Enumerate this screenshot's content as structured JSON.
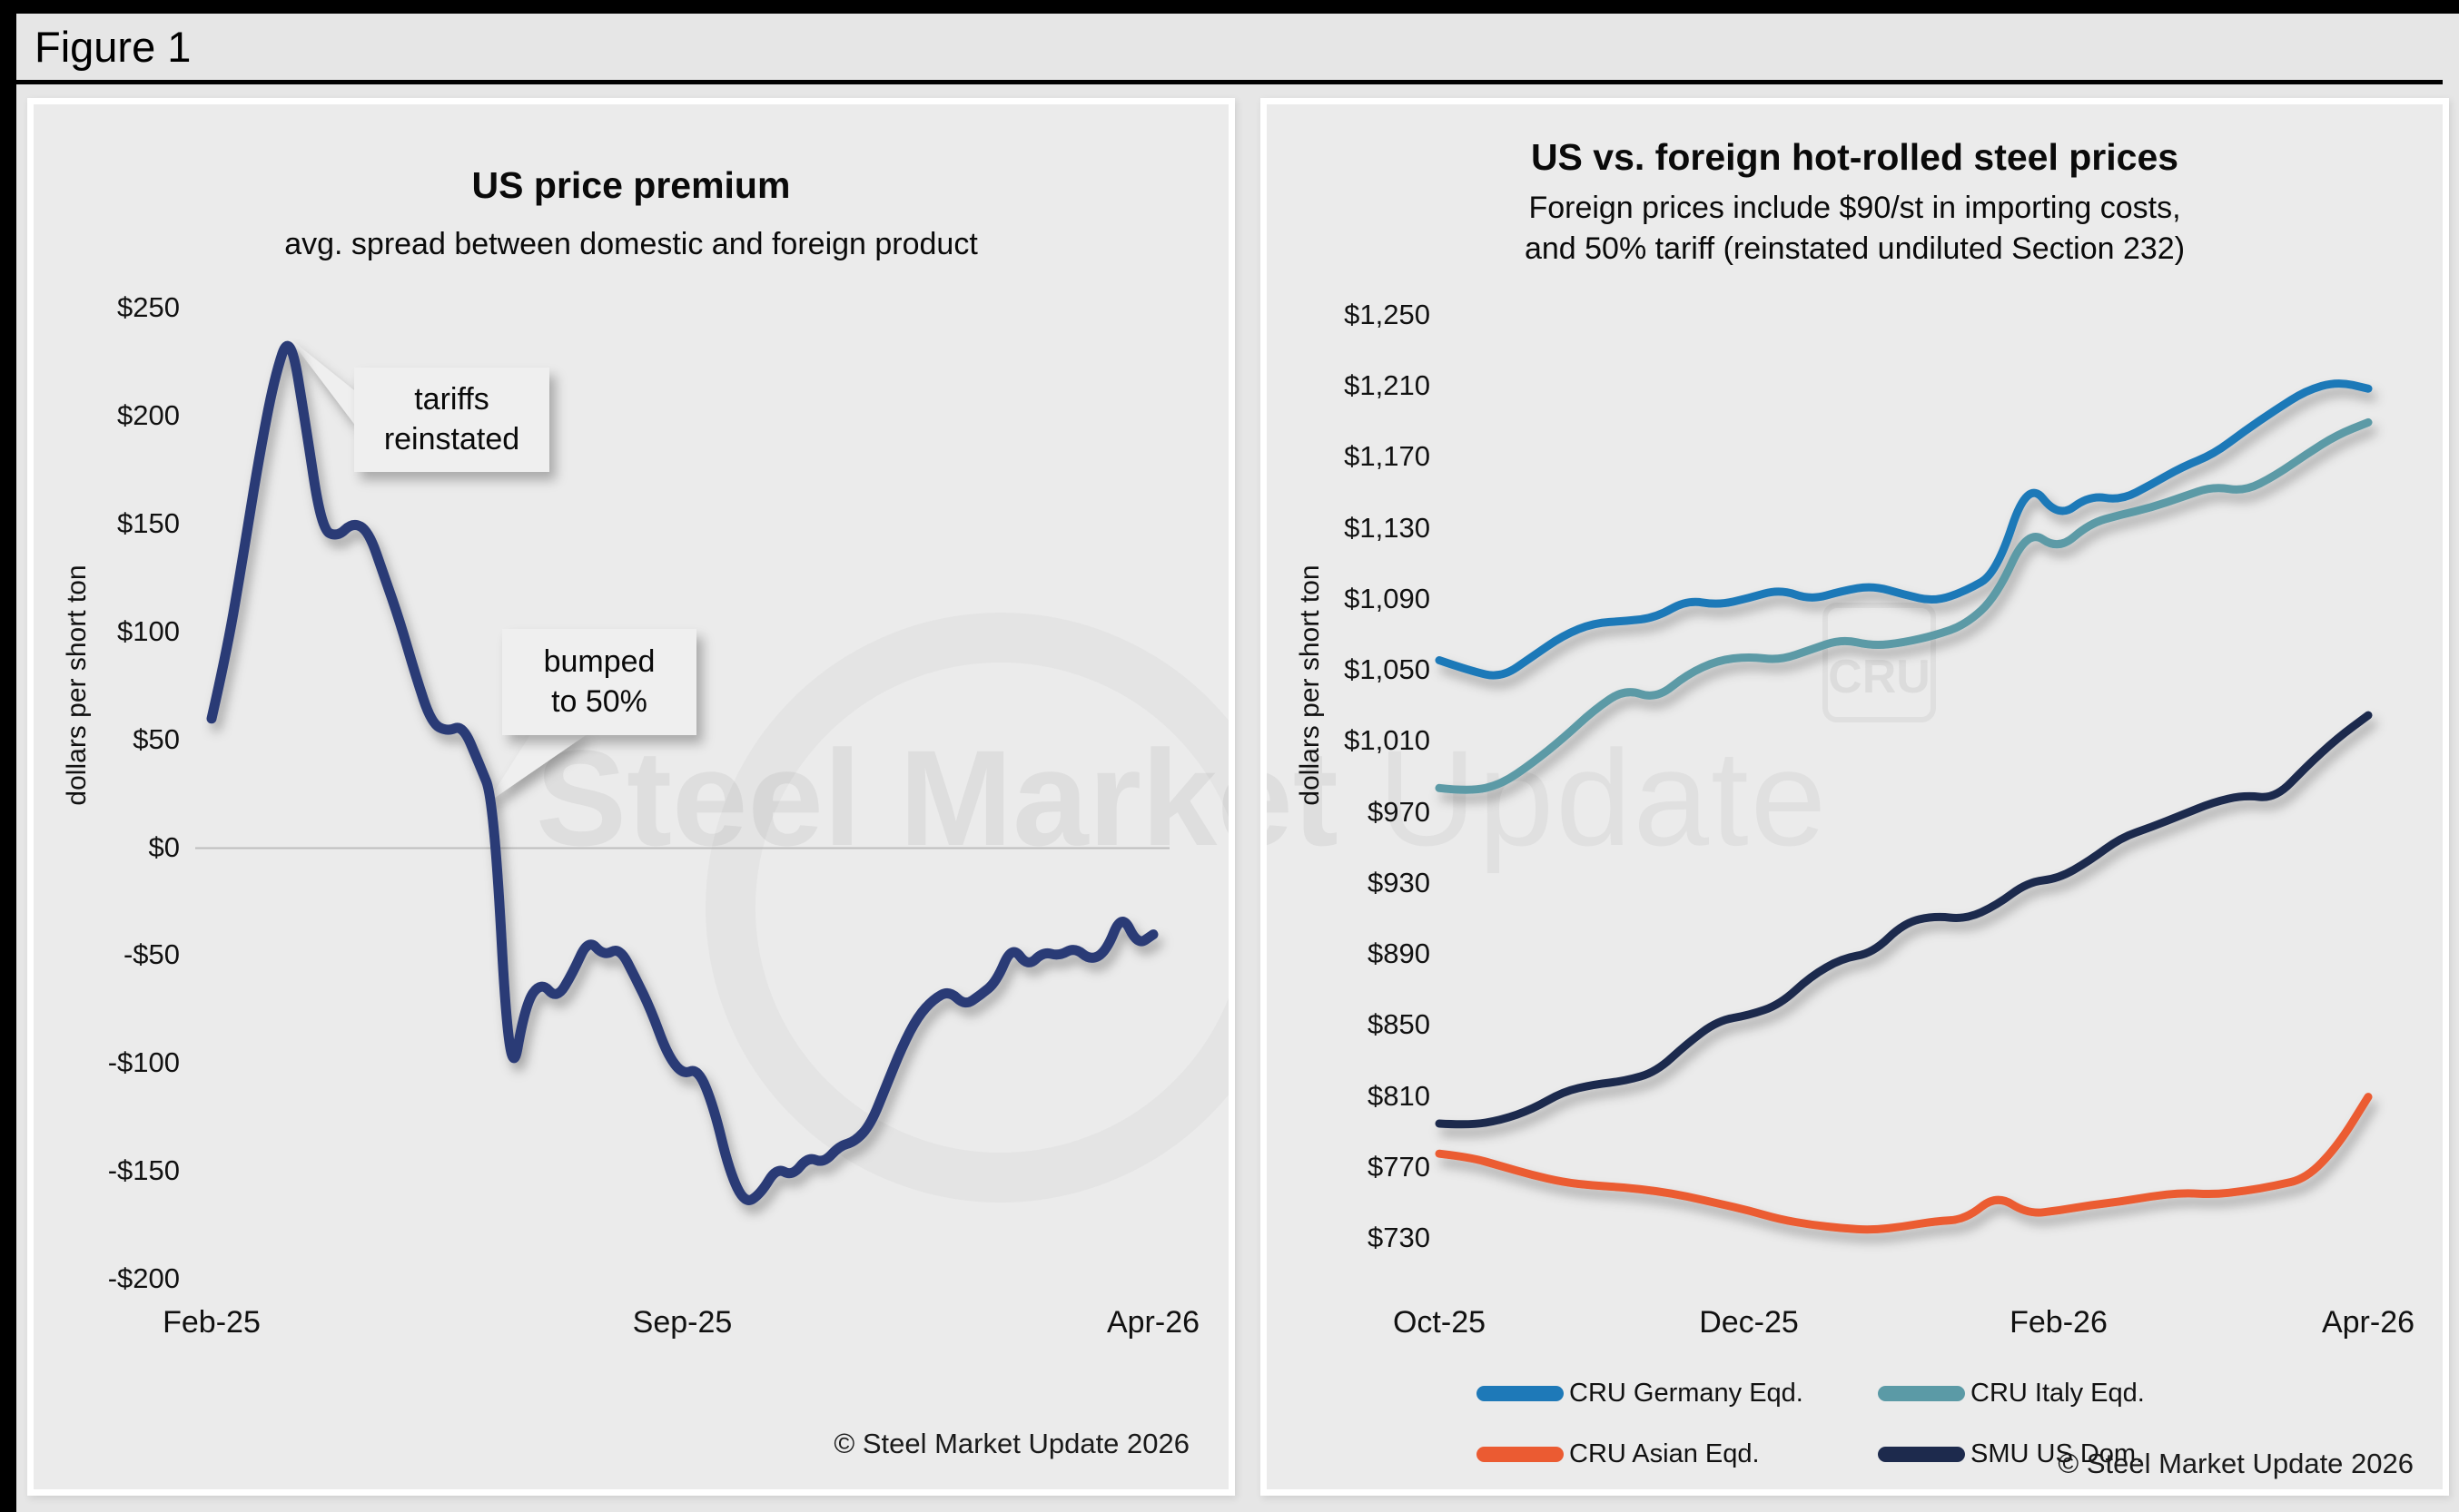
{
  "page": {
    "figure_label": "Figure 1"
  },
  "watermark": {
    "bold": "Steel Market",
    "light": " Update",
    "cru": "CRU"
  },
  "left_chart": {
    "title": "US price premium",
    "subtitle": "avg. spread between domestic and foreign product",
    "y_axis_label": "dollars per short ton",
    "copyright": "© Steel Market Update 2026",
    "annotations": [
      {
        "text": "tariffs\nreinstated"
      },
      {
        "text": "bumped\nto 50%"
      }
    ],
    "chart_data": {
      "type": "line",
      "title": "US price premium",
      "subtitle": "avg. spread between domestic and foreign product",
      "ylabel": "dollars per short ton",
      "x_ticks": [
        "Feb-25",
        "Sep-25",
        "Apr-26"
      ],
      "x_tick_months": [
        0,
        7,
        14
      ],
      "x_range_months": [
        0,
        14
      ],
      "y_ticks": [
        "$250",
        "$200",
        "$150",
        "$100",
        "$50",
        "$0",
        "-$50",
        "-$100",
        "-$150",
        "-$200"
      ],
      "y_tick_values": [
        250,
        200,
        150,
        100,
        50,
        0,
        -50,
        -100,
        -150,
        -200
      ],
      "ylim": [
        -200,
        250
      ],
      "gridlines": [
        0
      ],
      "legend_position": "none",
      "series": [
        {
          "name": "US price premium (avg. spread, $/short ton)",
          "color": "#2b3a76",
          "width": 11,
          "values": [
            60,
            92,
            135,
            180,
            218,
            240,
            196,
            148,
            144,
            151,
            147,
            126,
            105,
            80,
            58,
            54,
            57,
            40,
            22,
            -113,
            -72,
            -62,
            -70,
            -58,
            -42,
            -50,
            -46,
            -60,
            -75,
            -95,
            -105,
            -102,
            -120,
            -150,
            -165,
            -160,
            -148,
            -152,
            -143,
            -146,
            -138,
            -136,
            -128,
            -110,
            -92,
            -78,
            -70,
            -66,
            -73,
            -68,
            -62,
            -45,
            -55,
            -48,
            -50,
            -46,
            -52,
            -48,
            -30,
            -45,
            -40
          ]
        }
      ]
    }
  },
  "right_chart": {
    "title": "US vs. foreign hot-rolled steel prices",
    "subtitle_line1": "Foreign prices include $90/st in importing costs,",
    "subtitle_line2": "and 50% tariff (reinstated undiluted Section 232)",
    "y_axis_label": "dollars per short ton",
    "copyright": "© Steel Market Update 2026",
    "chart_data": {
      "type": "line",
      "title": "US vs. foreign hot-rolled steel prices",
      "subtitle": "Foreign prices include $90/st in importing costs, and 50% tariff (reinstated undiluted Section 232)",
      "ylabel": "dollars per short ton",
      "x_ticks": [
        "Oct-25",
        "Dec-25",
        "Feb-26",
        "Apr-26"
      ],
      "x_tick_months": [
        0,
        2,
        4,
        6
      ],
      "x_range_months": [
        0,
        6
      ],
      "y_ticks": [
        "$1,250",
        "$1,210",
        "$1,170",
        "$1,130",
        "$1,090",
        "$1,050",
        "$1,010",
        "$970",
        "$930",
        "$890",
        "$850",
        "$810",
        "$770",
        "$730"
      ],
      "y_tick_values": [
        1250,
        1210,
        1170,
        1130,
        1090,
        1050,
        1010,
        970,
        930,
        890,
        850,
        810,
        770,
        730
      ],
      "ylim": [
        730,
        1250
      ],
      "gridlines": [],
      "legend_position": "bottom",
      "series": [
        {
          "name": "CRU Germany Eqd.",
          "color": "#1e79b8",
          "width": 9,
          "values": [
            1056,
            1050,
            1046,
            1058,
            1070,
            1077,
            1078,
            1080,
            1090,
            1087,
            1091,
            1096,
            1090,
            1095,
            1098,
            1093,
            1089,
            1095,
            1105,
            1158,
            1136,
            1149,
            1146,
            1155,
            1165,
            1172,
            1185,
            1197,
            1208,
            1213,
            1209
          ]
        },
        {
          "name": "CRU Italy Eqd.",
          "color": "#5b9aa6",
          "width": 9,
          "values": [
            984,
            982,
            986,
            998,
            1012,
            1028,
            1040,
            1034,
            1048,
            1056,
            1058,
            1056,
            1062,
            1068,
            1064,
            1066,
            1070,
            1076,
            1092,
            1130,
            1118,
            1133,
            1138,
            1142,
            1148,
            1154,
            1151,
            1160,
            1172,
            1183,
            1190
          ]
        },
        {
          "name": "CRU Asian Eqd.",
          "color": "#eb5b32",
          "width": 9,
          "values": [
            778,
            776,
            771,
            766,
            762,
            760,
            759,
            757,
            754,
            750,
            746,
            741,
            738,
            736,
            735,
            737,
            740,
            741,
            755,
            744,
            746,
            749,
            751,
            754,
            756,
            755,
            757,
            760,
            764,
            782,
            810
          ]
        },
        {
          "name": "SMU US Dom.",
          "color": "#1d2a4d",
          "width": 9,
          "values": [
            795,
            794,
            797,
            803,
            813,
            817,
            819,
            824,
            840,
            853,
            856,
            862,
            878,
            888,
            891,
            908,
            912,
            910,
            918,
            931,
            933,
            943,
            956,
            962,
            969,
            976,
            980,
            978,
            996,
            1012,
            1025
          ]
        }
      ]
    }
  }
}
